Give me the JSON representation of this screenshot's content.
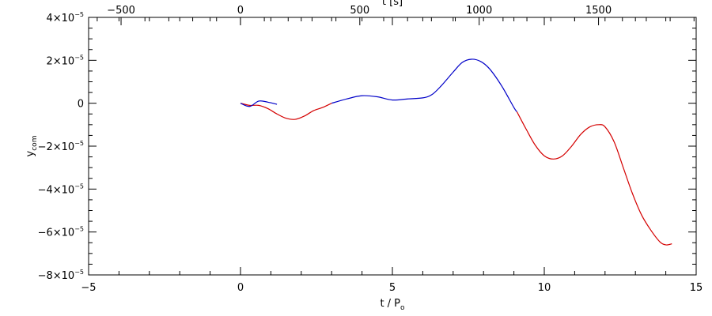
{
  "chart_data": {
    "type": "line",
    "xlabel": {
      "text": "t / P",
      "sub": "o"
    },
    "ylabel": {
      "text": "y",
      "sub": "com"
    },
    "top_xlabel": {
      "text": "t [s]"
    },
    "xlim": [
      -5,
      15
    ],
    "ylim": [
      -8e-05,
      4e-05
    ],
    "top_xlim": [
      -636,
      1909
    ],
    "x_ticks": [
      -5,
      0,
      5,
      10,
      15
    ],
    "x_tick_labels": [
      "−5",
      "0",
      "5",
      "10",
      "15"
    ],
    "top_x_ticks": [
      -500,
      0,
      500,
      1000,
      1500
    ],
    "top_x_tick_labels": [
      "−500",
      "0",
      "500",
      "1000",
      "1500"
    ],
    "y_ticks": [
      4e-05,
      2e-05,
      0,
      -2e-05,
      -4e-05,
      -6e-05,
      -8e-05
    ],
    "y_tick_labels": [
      {
        "base": "4×10",
        "exp": "−5"
      },
      {
        "base": "2×10",
        "exp": "−5"
      },
      {
        "base": "0",
        "exp": ""
      },
      {
        "base": "−2×10",
        "exp": "−5"
      },
      {
        "base": "−4×10",
        "exp": "−5"
      },
      {
        "base": "−6×10",
        "exp": "−5"
      },
      {
        "base": "−8×10",
        "exp": "−5"
      }
    ],
    "grid": false,
    "series": [
      {
        "color": "#d40000",
        "x": [
          0.0,
          0.3,
          0.6,
          0.9,
          1.2,
          1.5,
          1.8,
          2.1,
          2.4,
          2.7,
          3.0
        ],
        "y": [
          0.0,
          -1e-06,
          -1e-06,
          -2.5e-06,
          -5e-06,
          -7e-06,
          -7.5e-06,
          -6e-06,
          -3.5e-06,
          -2e-06,
          0.0
        ]
      },
      {
        "color": "#0000c8",
        "x": [
          0.0,
          0.3,
          0.6,
          0.9,
          1.2
        ],
        "y": [
          0.0,
          -1.5e-06,
          1e-06,
          5e-07,
          -5e-07
        ]
      },
      {
        "color": "#0000c8",
        "x": [
          3.0,
          3.5,
          4.0,
          4.5,
          5.0,
          5.5,
          6.0,
          6.3,
          6.6,
          7.0,
          7.3,
          7.6,
          7.9,
          8.2,
          8.6,
          9.0,
          9.1
        ],
        "y": [
          0.0,
          2e-06,
          3.5e-06,
          3e-06,
          1.5e-06,
          2e-06,
          2.5e-06,
          4e-06,
          8e-06,
          1.45e-05,
          1.9e-05,
          2.05e-05,
          1.95e-05,
          1.6e-05,
          8e-06,
          -2e-06,
          -4e-06
        ]
      },
      {
        "color": "#d40000",
        "x": [
          9.1,
          9.4,
          9.7,
          10.0,
          10.3,
          10.6,
          10.9,
          11.2,
          11.5,
          11.8,
          12.0,
          12.3,
          12.6,
          12.9,
          13.2,
          13.5,
          13.8,
          14.0,
          14.2
        ],
        "y": [
          -4e-06,
          -1.2e-05,
          -1.95e-05,
          -2.45e-05,
          -2.6e-05,
          -2.45e-05,
          -2e-05,
          -1.45e-05,
          -1.1e-05,
          -1e-05,
          -1.1e-05,
          -1.8e-05,
          -3e-05,
          -4.2e-05,
          -5.2e-05,
          -5.9e-05,
          -6.45e-05,
          -6.6e-05,
          -6.55e-05
        ]
      }
    ]
  }
}
